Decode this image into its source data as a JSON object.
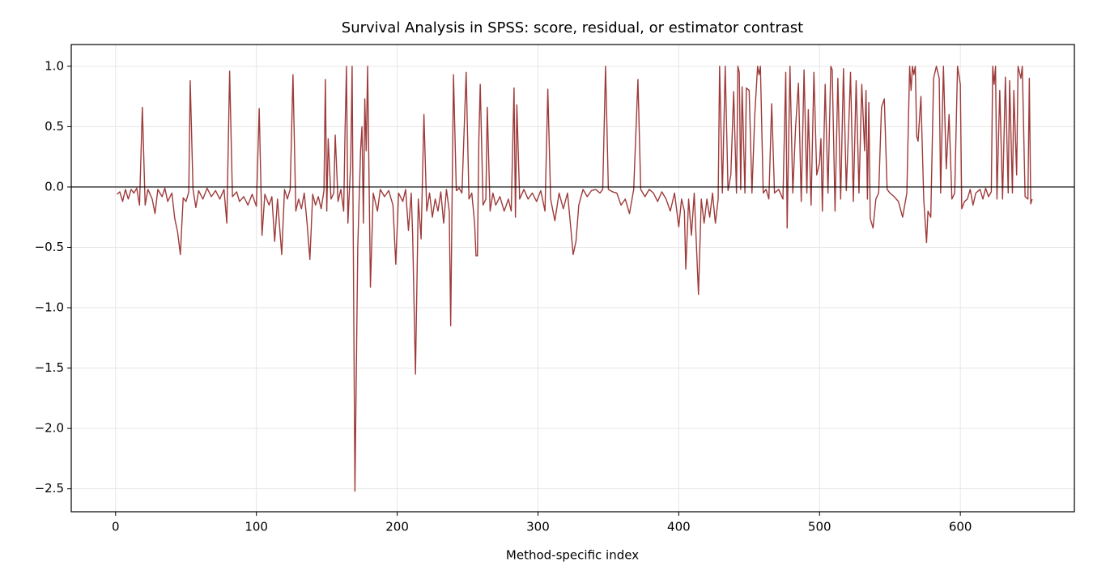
{
  "chart_data": {
    "type": "line",
    "title": "Survival Analysis in SPSS: score, residual, or estimator contrast",
    "x_label": "Method-specific index",
    "xlim": [
      -31.5,
      681
    ],
    "ylim": [
      -2.69,
      1.18
    ],
    "xticks": [
      0,
      100,
      200,
      300,
      400,
      500,
      600
    ],
    "yticks": [
      {
        "value": -2.5,
        "label": "−2.5"
      },
      {
        "value": -2.0,
        "label": "−2.0"
      },
      {
        "value": -1.5,
        "label": "−1.5"
      },
      {
        "value": -1.0,
        "label": "−1.0"
      },
      {
        "value": -0.5,
        "label": "−0.5"
      },
      {
        "value": 0.0,
        "label": "0.0"
      },
      {
        "value": 0.5,
        "label": "0.5"
      },
      {
        "value": 1.0,
        "label": "1.0"
      }
    ],
    "grid": true,
    "hline": 0,
    "series": [
      {
        "color": "#9e3a3a",
        "x": [
          1,
          3,
          5,
          7,
          9,
          11,
          13,
          15,
          17,
          19,
          21,
          23,
          26,
          28,
          30,
          33,
          35,
          37,
          40,
          42,
          44,
          46,
          48,
          50,
          52,
          53,
          55,
          57,
          59,
          62,
          65,
          68,
          71,
          74,
          77,
          79,
          81,
          83,
          86,
          88,
          91,
          94,
          97,
          100,
          102,
          104,
          106,
          109,
          111,
          113,
          115,
          118,
          120,
          122,
          124,
          126,
          128,
          130,
          132,
          134,
          136,
          138,
          140,
          142,
          144,
          146,
          148,
          149,
          150,
          151,
          153,
          155,
          156,
          158,
          160,
          162,
          163,
          164,
          165,
          167,
          168,
          170,
          172,
          174,
          175,
          176,
          177,
          178,
          179,
          181,
          183,
          186,
          188,
          191,
          194,
          197,
          199,
          201,
          204,
          206,
          208,
          210,
          211,
          213,
          215,
          217,
          219,
          221,
          223,
          225,
          227,
          229,
          231,
          233,
          235,
          237,
          238,
          240,
          242,
          244,
          246,
          249,
          251,
          253,
          255,
          256,
          257,
          258,
          259,
          261,
          263,
          264,
          266,
          268,
          270,
          273,
          276,
          279,
          281,
          283,
          284,
          285,
          287,
          290,
          293,
          296,
          299,
          302,
          305,
          307,
          309,
          312,
          315,
          318,
          321,
          323,
          325,
          327,
          329,
          332,
          335,
          338,
          341,
          344,
          346,
          348,
          350,
          353,
          356,
          359,
          362,
          365,
          368,
          371,
          373,
          376,
          379,
          382,
          385,
          388,
          391,
          394,
          397,
          400,
          402,
          404,
          405,
          407,
          409,
          411,
          414,
          416,
          418,
          420,
          422,
          424,
          426,
          428,
          429,
          431,
          433,
          435,
          437,
          439,
          441,
          442,
          443,
          444,
          445,
          447,
          448,
          450,
          452,
          454,
          456,
          457,
          458,
          460,
          462,
          464,
          466,
          468,
          471,
          474,
          476,
          477,
          479,
          481,
          483,
          485,
          487,
          489,
          491,
          492,
          494,
          496,
          498,
          500,
          501,
          502,
          504,
          506,
          508,
          509,
          511,
          513,
          515,
          517,
          519,
          521,
          522,
          524,
          526,
          528,
          530,
          532,
          533,
          534,
          535,
          536,
          538,
          540,
          542,
          544,
          546,
          548,
          550,
          553,
          556,
          559,
          562,
          564,
          565,
          566,
          567,
          568,
          569,
          570,
          572,
          574,
          576,
          577,
          579,
          581,
          583,
          585,
          586,
          588,
          590,
          592,
          594,
          596,
          598,
          600,
          601,
          603,
          605,
          607,
          609,
          611,
          614,
          616,
          618,
          620,
          622,
          623,
          624,
          625,
          626,
          628,
          630,
          632,
          634,
          635,
          637,
          638,
          640,
          641,
          643,
          644,
          646,
          648,
          649,
          650,
          651
        ],
        "values": [
          -0.06,
          -0.04,
          -0.12,
          -0.02,
          -0.1,
          -0.02,
          -0.05,
          -0.01,
          -0.15,
          0.66,
          -0.15,
          -0.02,
          -0.1,
          -0.22,
          -0.02,
          -0.08,
          -0.01,
          -0.12,
          -0.05,
          -0.26,
          -0.37,
          -0.56,
          -0.09,
          -0.12,
          -0.04,
          0.88,
          -0.02,
          -0.17,
          -0.03,
          -0.1,
          -0.01,
          -0.08,
          -0.03,
          -0.1,
          -0.02,
          -0.3,
          0.96,
          -0.08,
          -0.04,
          -0.12,
          -0.08,
          -0.15,
          -0.06,
          -0.16,
          0.65,
          -0.4,
          -0.06,
          -0.15,
          -0.08,
          -0.45,
          -0.1,
          -0.56,
          -0.02,
          -0.1,
          -0.02,
          0.93,
          -0.2,
          -0.1,
          -0.18,
          -0.05,
          -0.3,
          -0.6,
          -0.06,
          -0.15,
          -0.08,
          -0.18,
          -0.03,
          0.89,
          -0.2,
          0.4,
          -0.1,
          -0.05,
          0.43,
          -0.12,
          -0.02,
          -0.2,
          0.48,
          1.0,
          -0.3,
          0.2,
          1.0,
          -2.52,
          -0.5,
          0.3,
          0.5,
          -0.3,
          0.73,
          0.3,
          1.0,
          -0.83,
          -0.05,
          -0.2,
          -0.02,
          -0.08,
          -0.03,
          -0.15,
          -0.64,
          -0.05,
          -0.12,
          -0.02,
          -0.36,
          -0.05,
          -0.4,
          -1.55,
          -0.1,
          -0.43,
          0.6,
          -0.2,
          -0.05,
          -0.25,
          -0.1,
          -0.2,
          -0.04,
          -0.3,
          -0.02,
          -0.2,
          -1.15,
          0.93,
          -0.03,
          -0.01,
          -0.05,
          0.95,
          -0.1,
          -0.05,
          -0.3,
          -0.57,
          -0.57,
          0.38,
          0.85,
          -0.15,
          -0.1,
          0.66,
          -0.2,
          -0.05,
          -0.15,
          -0.08,
          -0.2,
          -0.1,
          -0.2,
          0.82,
          -0.25,
          0.68,
          -0.1,
          -0.02,
          -0.1,
          -0.05,
          -0.12,
          -0.03,
          -0.2,
          0.81,
          -0.1,
          -0.28,
          -0.05,
          -0.18,
          -0.05,
          -0.3,
          -0.56,
          -0.45,
          -0.15,
          -0.02,
          -0.08,
          -0.03,
          -0.02,
          -0.05,
          -0.02,
          1.0,
          -0.02,
          -0.04,
          -0.05,
          -0.15,
          -0.1,
          -0.22,
          -0.02,
          0.89,
          -0.02,
          -0.08,
          -0.02,
          -0.05,
          -0.12,
          -0.04,
          -0.1,
          -0.2,
          -0.05,
          -0.33,
          -0.1,
          -0.2,
          -0.68,
          -0.1,
          -0.4,
          -0.05,
          -0.89,
          -0.1,
          -0.3,
          -0.1,
          -0.25,
          -0.05,
          -0.3,
          -0.1,
          1.0,
          -0.05,
          1.0,
          -0.03,
          0.1,
          0.79,
          -0.05,
          1.0,
          0.95,
          -0.02,
          0.83,
          -0.05,
          0.82,
          0.8,
          -0.05,
          0.6,
          1.0,
          0.93,
          1.0,
          -0.05,
          -0.02,
          -0.1,
          0.69,
          -0.05,
          -0.02,
          -0.1,
          0.95,
          -0.34,
          1.0,
          -0.05,
          0.5,
          0.86,
          -0.12,
          0.97,
          -0.05,
          0.64,
          -0.15,
          0.95,
          0.1,
          0.2,
          0.4,
          -0.2,
          0.85,
          -0.05,
          1.0,
          0.97,
          -0.2,
          0.9,
          -0.1,
          0.98,
          -0.03,
          0.6,
          0.95,
          -0.12,
          0.88,
          -0.05,
          0.85,
          0.3,
          0.8,
          -0.1,
          0.7,
          -0.26,
          -0.34,
          -0.1,
          -0.05,
          0.66,
          0.73,
          -0.02,
          -0.05,
          -0.08,
          -0.12,
          -0.25,
          -0.05,
          1.0,
          0.8,
          1.0,
          0.93,
          1.0,
          0.42,
          0.38,
          0.75,
          -0.1,
          -0.46,
          -0.2,
          -0.25,
          0.9,
          1.0,
          0.9,
          -0.05,
          1.0,
          0.15,
          0.6,
          -0.1,
          -0.05,
          1.0,
          0.85,
          -0.18,
          -0.12,
          -0.1,
          -0.02,
          -0.15,
          -0.05,
          -0.02,
          -0.1,
          -0.01,
          -0.08,
          -0.04,
          1.0,
          0.85,
          1.0,
          -0.1,
          0.8,
          -0.1,
          0.91,
          -0.05,
          0.88,
          -0.05,
          0.8,
          0.1,
          1.0,
          0.9,
          1.0,
          -0.08,
          -0.1,
          0.9,
          -0.14,
          -0.1
        ]
      }
    ]
  }
}
